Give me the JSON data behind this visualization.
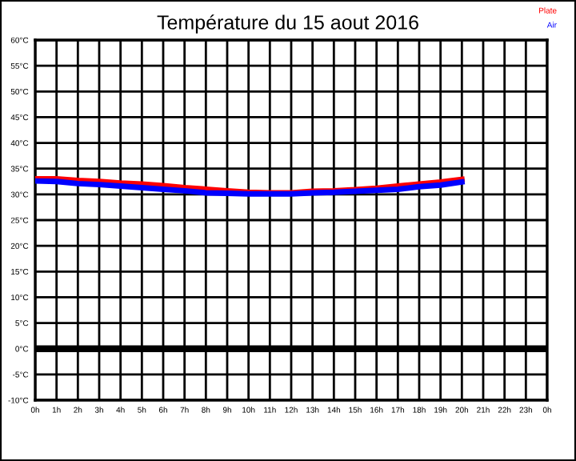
{
  "chart_data": {
    "type": "line",
    "title": "Température du 15 aout 2016",
    "x": [
      "2016-08-15T00:00",
      "2016-08-15T01:00",
      "2016-08-15T02:00",
      "2016-08-15T03:00",
      "2016-08-15T04:00",
      "2016-08-15T05:00",
      "2016-08-15T06:00",
      "2016-08-15T07:00",
      "2016-08-15T08:00",
      "2016-08-15T09:00",
      "2016-08-15T10:00",
      "2016-08-15T11:00",
      "2016-08-15T12:00",
      "2016-08-15T13:00",
      "2016-08-15T14:00",
      "2016-08-15T15:00",
      "2016-08-15T16:00",
      "2016-08-15T17:00",
      "2016-08-15T18:00",
      "2016-08-15T19:00",
      "2016-08-15T20:00"
    ],
    "series": [
      {
        "name": "Plate",
        "color": "#ff0000",
        "values": [
          33,
          33,
          32.7,
          32.5,
          32.2,
          32,
          31.7,
          31.3,
          31,
          30.7,
          30.4,
          30.3,
          30.3,
          30.6,
          30.7,
          30.9,
          31.2,
          31.6,
          32,
          32.4,
          32.9
        ]
      },
      {
        "name": "Air",
        "color": "#0000ff",
        "values": [
          32.6,
          32.5,
          32.1,
          31.9,
          31.6,
          31.3,
          31,
          30.7,
          30.3,
          30.2,
          30.1,
          30.1,
          30.1,
          30.3,
          30.4,
          30.6,
          30.8,
          31,
          31.5,
          31.8,
          32.4
        ]
      }
    ],
    "xlim": [
      "2016-08-15T00:00",
      "2016-08-16T00:00"
    ],
    "xticks": [
      {
        "value": "2016-08-15T00:00",
        "label": "0h"
      },
      {
        "value": "2016-08-15T01:00",
        "label": "1h"
      },
      {
        "value": "2016-08-15T02:00",
        "label": "2h"
      },
      {
        "value": "2016-08-15T03:00",
        "label": "3h"
      },
      {
        "value": "2016-08-15T04:00",
        "label": "4h"
      },
      {
        "value": "2016-08-15T05:00",
        "label": "5h"
      },
      {
        "value": "2016-08-15T06:00",
        "label": "6h"
      },
      {
        "value": "2016-08-15T07:00",
        "label": "7h"
      },
      {
        "value": "2016-08-15T08:00",
        "label": "8h"
      },
      {
        "value": "2016-08-15T09:00",
        "label": "9h"
      },
      {
        "value": "2016-08-15T10:00",
        "label": "10h"
      },
      {
        "value": "2016-08-15T11:00",
        "label": "11h"
      },
      {
        "value": "2016-08-15T12:00",
        "label": "12h"
      },
      {
        "value": "2016-08-15T13:00",
        "label": "13h"
      },
      {
        "value": "2016-08-15T14:00",
        "label": "14h"
      },
      {
        "value": "2016-08-15T15:00",
        "label": "15h"
      },
      {
        "value": "2016-08-15T16:00",
        "label": "16h"
      },
      {
        "value": "2016-08-15T17:00",
        "label": "17h"
      },
      {
        "value": "2016-08-15T18:00",
        "label": "18h"
      },
      {
        "value": "2016-08-15T19:00",
        "label": "19h"
      },
      {
        "value": "2016-08-15T20:00",
        "label": "20h"
      },
      {
        "value": "2016-08-15T21:00",
        "label": "21h"
      },
      {
        "value": "2016-08-15T22:00",
        "label": "22h"
      },
      {
        "value": "2016-08-15T23:00",
        "label": "23h"
      },
      {
        "value": "2016-08-16T00:00",
        "label": "0h"
      }
    ],
    "ylim": [
      -10,
      60
    ],
    "yticks": [
      {
        "value": -10,
        "label": "-10°C"
      },
      {
        "value": -5,
        "label": "-5°C"
      },
      {
        "value": 0,
        "label": "0°C"
      },
      {
        "value": 5,
        "label": "5°C"
      },
      {
        "value": 10,
        "label": "10°C"
      },
      {
        "value": 15,
        "label": "15°C"
      },
      {
        "value": 20,
        "label": "20°C"
      },
      {
        "value": 25,
        "label": "25°C"
      },
      {
        "value": 30,
        "label": "30°C"
      },
      {
        "value": 35,
        "label": "35°C"
      },
      {
        "value": 40,
        "label": "40°C"
      },
      {
        "value": 45,
        "label": "45°C"
      },
      {
        "value": 50,
        "label": "50°C"
      },
      {
        "value": 55,
        "label": "55°C"
      },
      {
        "value": 60,
        "label": "60°C"
      }
    ],
    "ref_lines": [
      {
        "axis": "y",
        "value": 0,
        "color": "#000000"
      }
    ],
    "grid": true,
    "legend": "top right",
    "line_style": "solid",
    "marker": "none"
  }
}
